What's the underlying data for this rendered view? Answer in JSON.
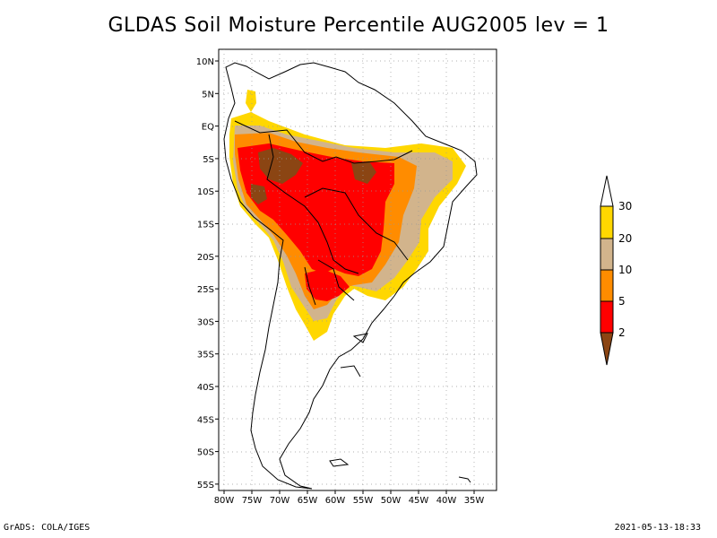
{
  "title": "GLDAS Soil Moisture Percentile AUG2005 lev = 1",
  "lat_ticks": [
    "10N",
    "5N",
    "EQ",
    "5S",
    "10S",
    "15S",
    "20S",
    "25S",
    "30S",
    "35S",
    "40S",
    "45S",
    "50S",
    "55S"
  ],
  "lon_ticks": [
    "80W",
    "75W",
    "70W",
    "65W",
    "60W",
    "55W",
    "50W",
    "45W",
    "40W",
    "35W"
  ],
  "colorbar": {
    "labels": [
      "30",
      "20",
      "10",
      "5",
      "2"
    ],
    "colors": {
      "above30": "#ffffff",
      "c20_30": "#ffd700",
      "c10_20": "#d2b48c",
      "c5_10": "#ff8c00",
      "c2_5": "#ff0000",
      "below2": "#8b4513"
    }
  },
  "footer": {
    "left": "GrADS: COLA/IGES",
    "right": "2021-05-13-18:33"
  }
}
